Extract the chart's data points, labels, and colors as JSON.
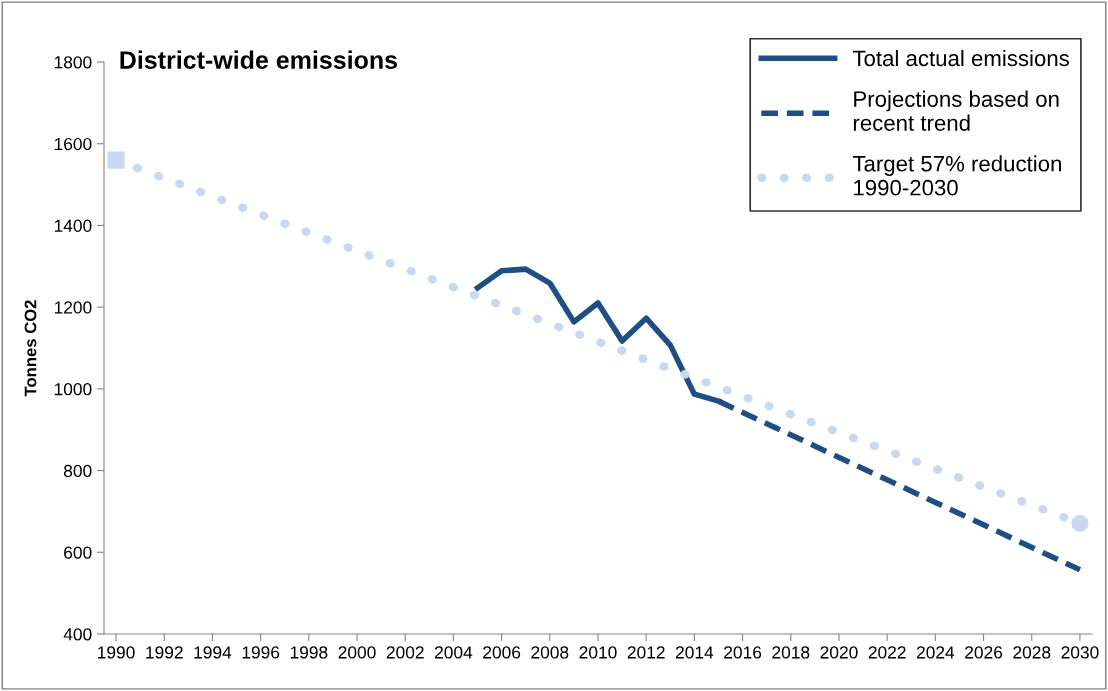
{
  "chart_data": {
    "type": "line",
    "title": "District-wide emissions",
    "ylabel": "Tonnes CO2",
    "xlim": [
      1989.5,
      2030.5
    ],
    "xticks": [
      1990,
      1992,
      1994,
      1996,
      1998,
      2000,
      2002,
      2004,
      2006,
      2008,
      2010,
      2012,
      2014,
      2016,
      2018,
      2020,
      2022,
      2024,
      2026,
      2028,
      2030
    ],
    "ylim": [
      400,
      1800
    ],
    "yticks": [
      400,
      600,
      800,
      1000,
      1200,
      1400,
      1600,
      1800
    ],
    "grid": false,
    "legend": "top right",
    "series": [
      {
        "name": "Total actual emissions",
        "color": "#1f4e84",
        "line_style": "solid",
        "x": [
          2005,
          2006,
          2007,
          2008,
          2009,
          2010,
          2011,
          2012,
          2013,
          2014,
          2015
        ],
        "values": [
          1247,
          1289,
          1293,
          1259,
          1164,
          1210,
          1117,
          1173,
          1107,
          987,
          970
        ]
      },
      {
        "name": "Projections based on\nrecent trend",
        "color": "#1f4e84",
        "line_style": "dashed",
        "x": [
          2015,
          2030
        ],
        "values": [
          970,
          557
        ]
      },
      {
        "name": "Target 57% reduction\n1990-2030",
        "color": "#c6d9f1",
        "line_style": "dotted",
        "x": [
          1990,
          2030
        ],
        "values": [
          1560,
          671
        ]
      },
      {
        "type": "scatter",
        "color": "#c6d9f1",
        "marker": "square",
        "x": [
          1990
        ],
        "values": [
          1560
        ]
      },
      {
        "type": "scatter",
        "color": "#c6d9f1",
        "marker": "circle",
        "x": [
          2030
        ],
        "values": [
          671
        ]
      }
    ]
  }
}
